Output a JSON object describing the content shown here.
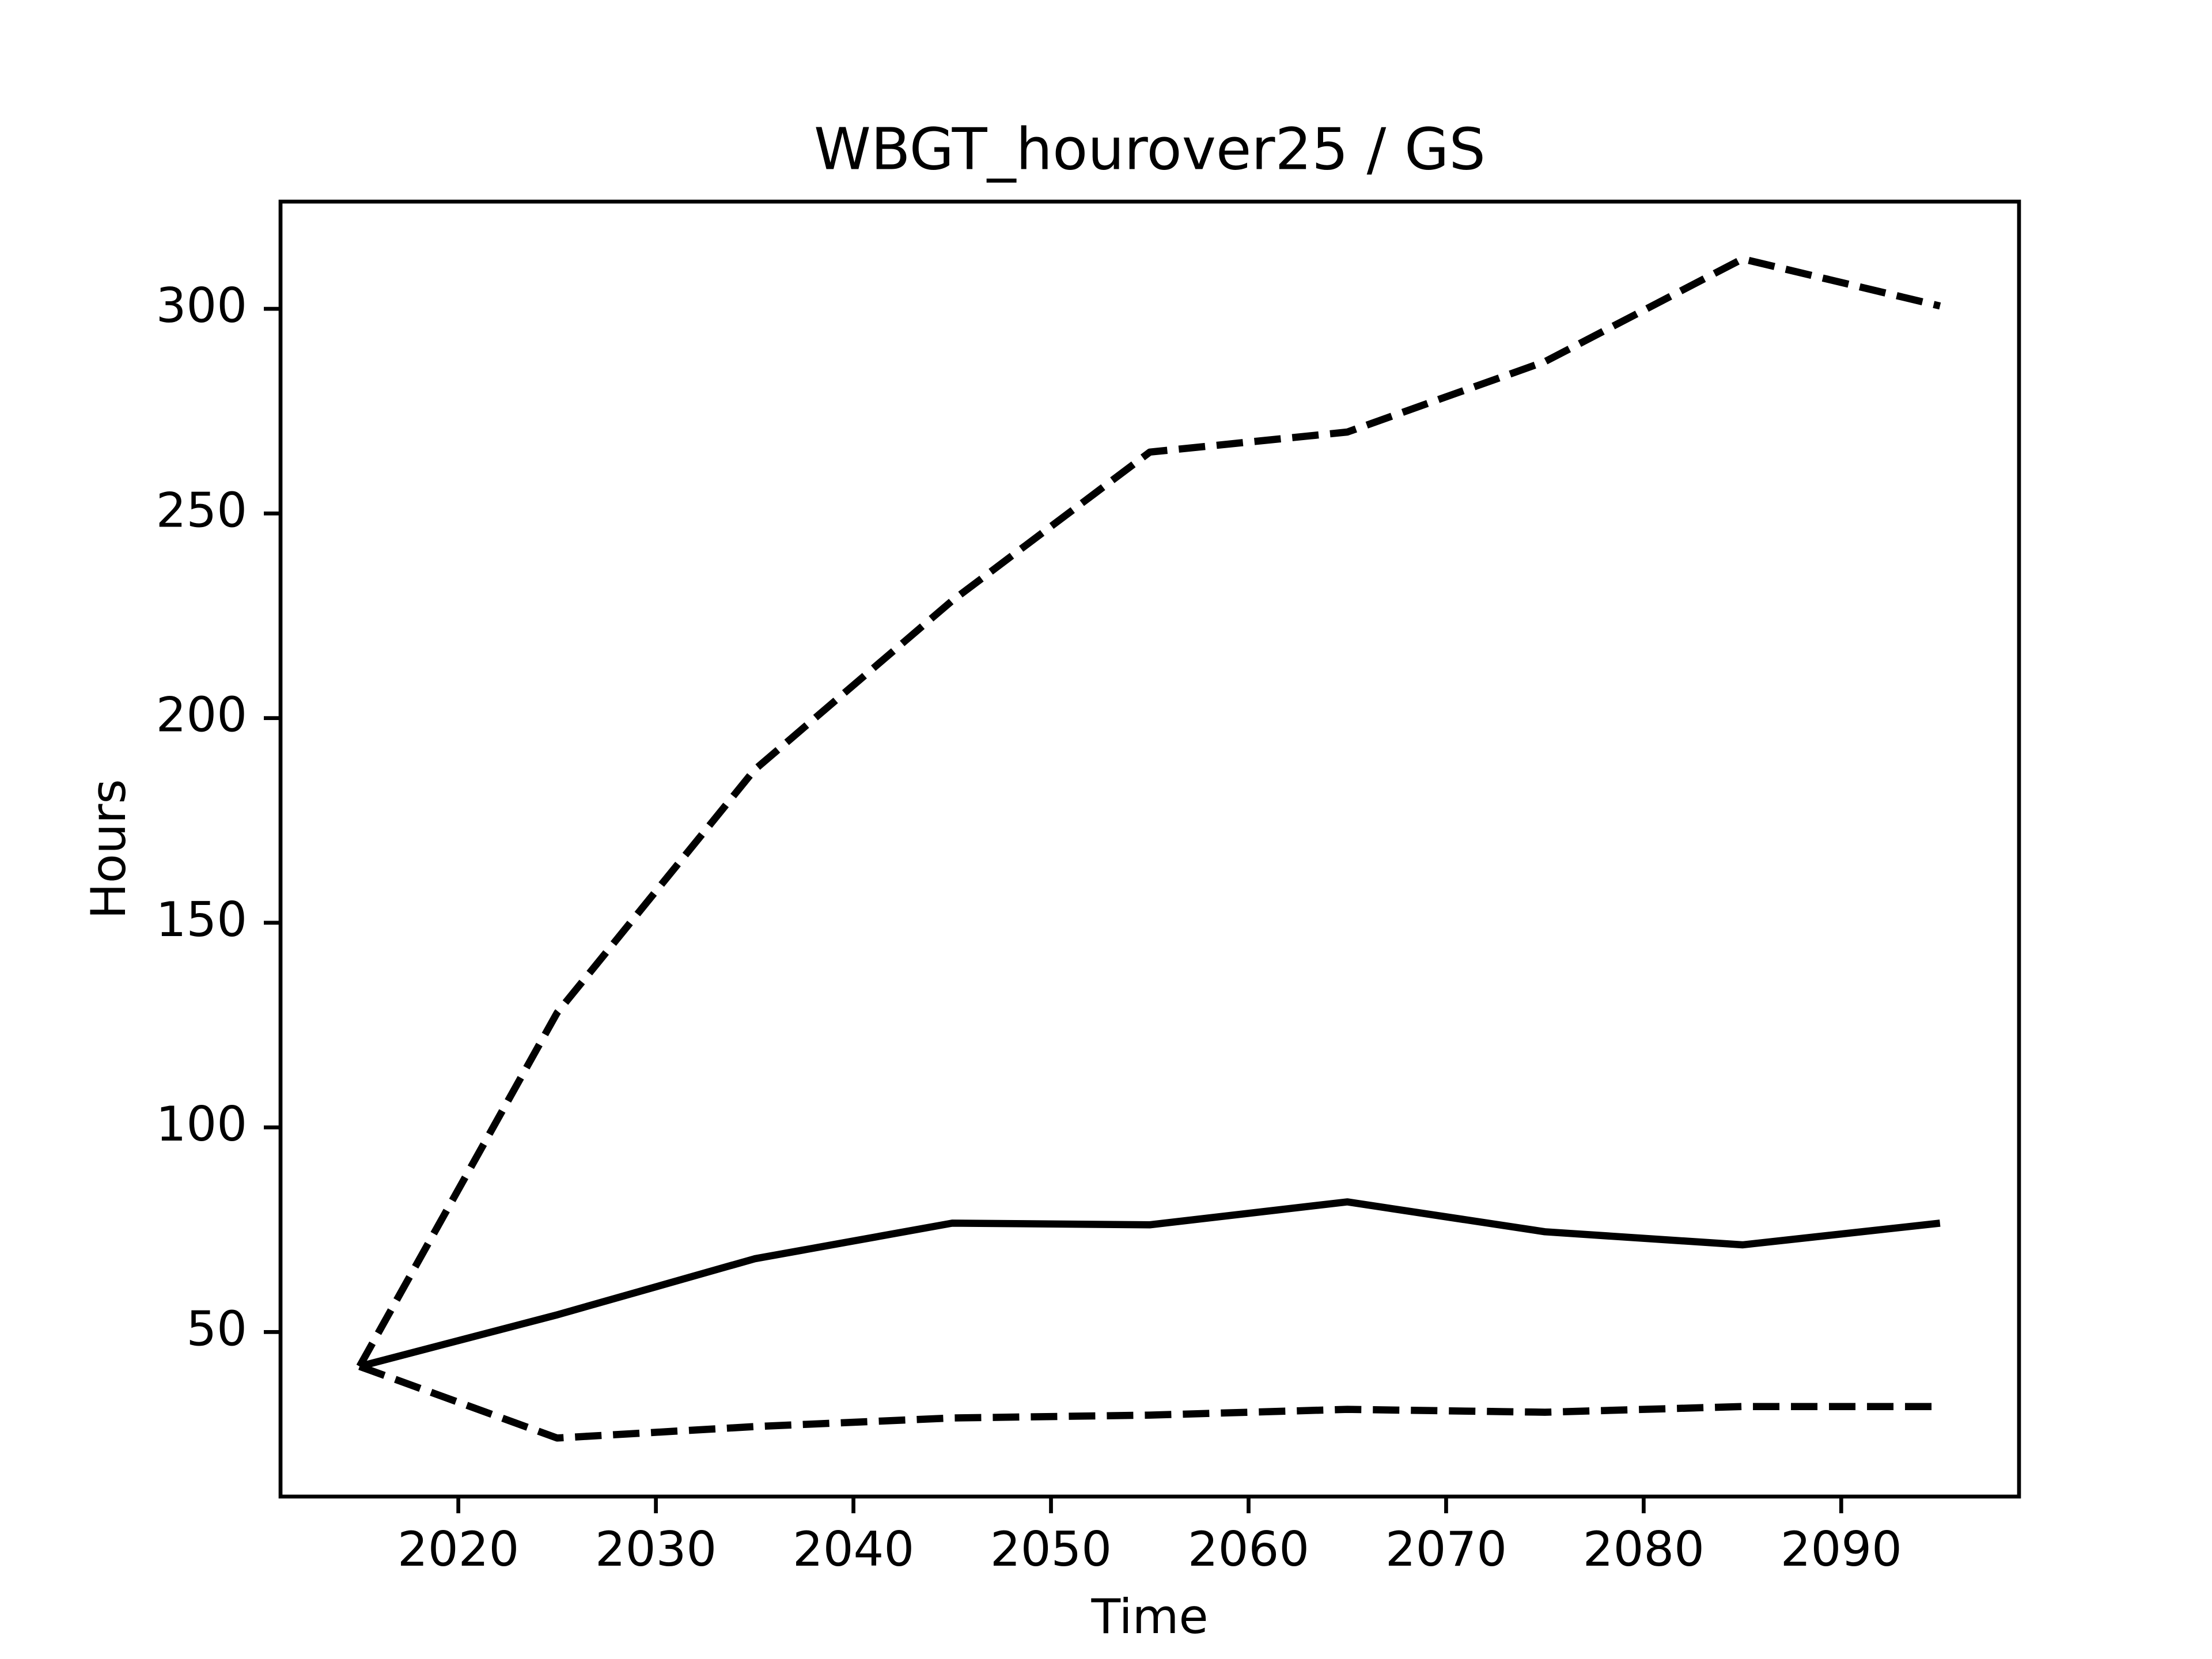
{
  "chart_data": {
    "type": "line",
    "title": "WBGT_hourover25 / GS",
    "xlabel": "Time",
    "ylabel": "Hours",
    "x": [
      2015,
      2025,
      2035,
      2045,
      2055,
      2065,
      2075,
      2085,
      2095
    ],
    "series": [
      {
        "color": "#000000",
        "linestyle": "solid",
        "values": [
          41.6,
          54.2,
          67.9,
          76.6,
          76.2,
          81.8,
          74.5,
          71.3,
          76.6
        ]
      },
      {
        "color": "#000000",
        "linestyle": "dashed",
        "values": [
          41.6,
          128.0,
          187.4,
          228.7,
          265.0,
          269.9,
          287.1,
          312.2,
          300.7
        ]
      },
      {
        "color": "#000000",
        "linestyle": "dashed",
        "values": [
          41.6,
          24.1,
          26.9,
          29.0,
          29.7,
          31.1,
          30.4,
          31.8,
          31.8
        ]
      }
    ],
    "xlim": [
      2011,
      2099
    ],
    "xticks": [
      2020,
      2030,
      2040,
      2050,
      2060,
      2070,
      2080,
      2090
    ],
    "ylim": [
      9.8,
      326.2
    ],
    "yticks": [
      50,
      100,
      150,
      200,
      250,
      300
    ],
    "grid": false
  }
}
